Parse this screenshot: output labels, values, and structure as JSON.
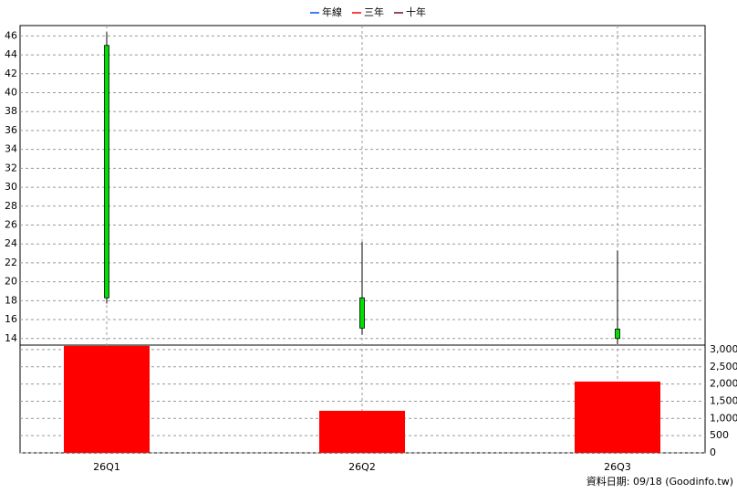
{
  "chart_data": [
    {
      "type": "candlestick",
      "categories": [
        "26Q1",
        "26Q2",
        "26Q3"
      ],
      "open": [
        45,
        18.3,
        15.0
      ],
      "close": [
        18.3,
        15.1,
        14.0
      ],
      "high": [
        46.4,
        24.2,
        23.3
      ],
      "low": [
        17.7,
        14.4,
        13.4
      ],
      "color": "#00e000",
      "legend": [
        {
          "name": "年線",
          "color": "#0050ff"
        },
        {
          "name": "三年",
          "color": "#ff0000"
        },
        {
          "name": "十年",
          "color": "#800040"
        }
      ],
      "ylim": [
        13.3,
        47.1
      ],
      "yticks": [
        14,
        16,
        18,
        20,
        22,
        24,
        26,
        28,
        30,
        32,
        34,
        36,
        38,
        40,
        42,
        44,
        46
      ],
      "grid": true
    },
    {
      "type": "bar",
      "categories": [
        "26Q1",
        "26Q2",
        "26Q3"
      ],
      "values": [
        3106,
        1221,
        2071
      ],
      "color": "#ff0000",
      "ylim": [
        0,
        3130
      ],
      "yticks": [
        0,
        500,
        {
          "value": 1000,
          "label": "1,000"
        },
        {
          "value": 1500,
          "label": "1,500"
        },
        {
          "value": 2000,
          "label": "2,000"
        },
        {
          "value": 2500,
          "label": "2,500"
        },
        {
          "value": 3000,
          "label": "3,000"
        }
      ],
      "grid": true
    }
  ],
  "footer": "資料日期: 09/18 (Goodinfo.tw)"
}
